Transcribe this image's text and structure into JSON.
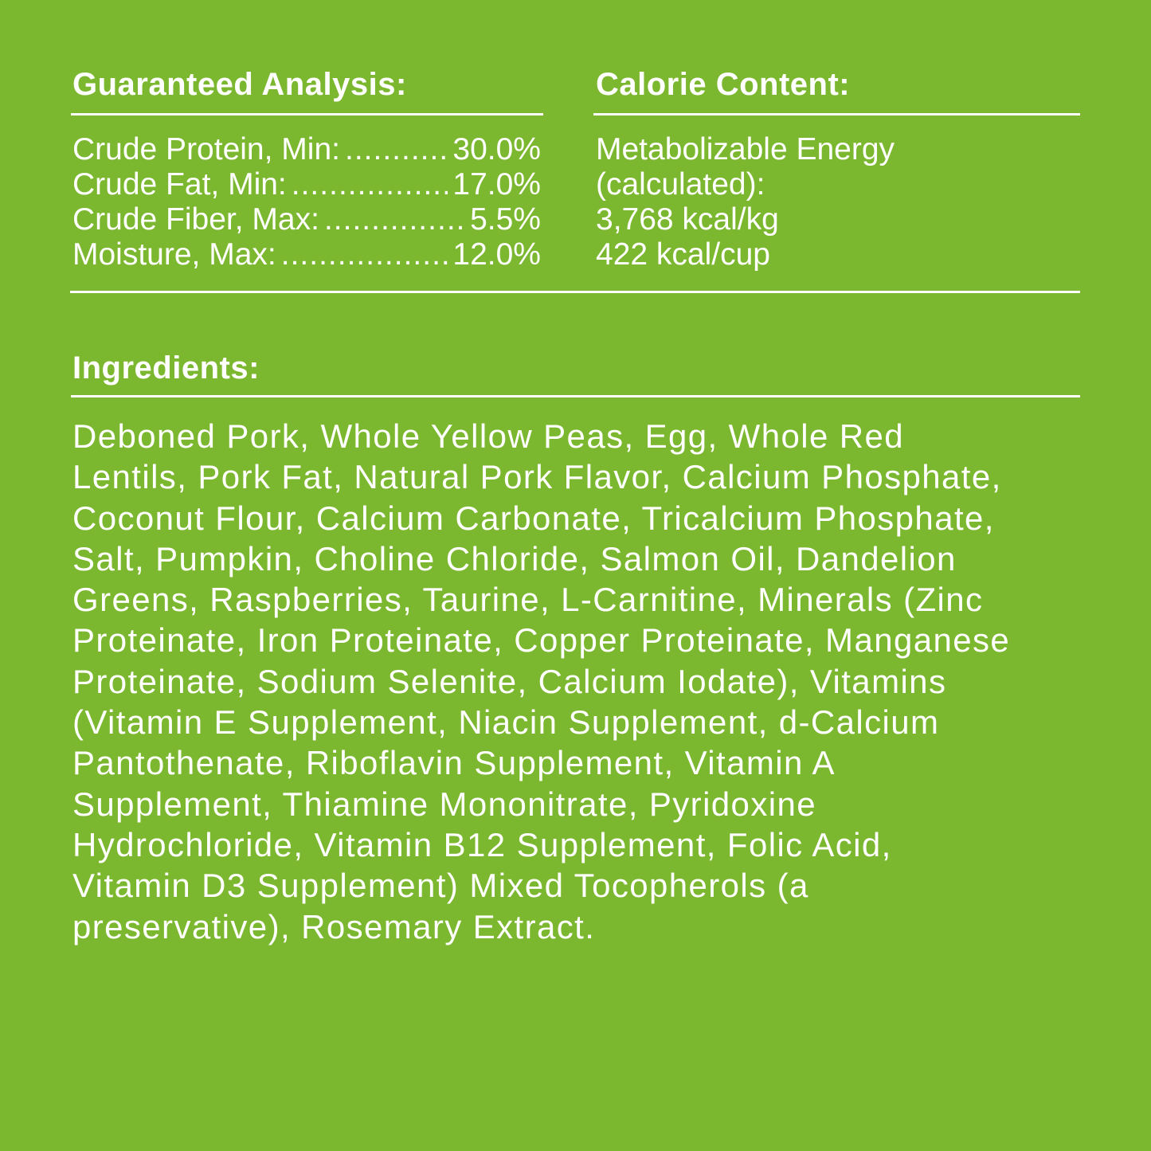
{
  "analysis": {
    "title": "Guaranteed Analysis:",
    "rows": [
      {
        "label": "Crude Protein, Min:",
        "value": "30.0%"
      },
      {
        "label": "Crude Fat, Min:",
        "value": "17.0%"
      },
      {
        "label": "Crude Fiber, Max:",
        "value": "5.5%"
      },
      {
        "label": "Moisture, Max:",
        "value": "12.0%"
      }
    ]
  },
  "calorie": {
    "title": "Calorie Content:",
    "lines": [
      "Metabolizable Energy",
      "(calculated):",
      "3,768 kcal/kg",
      "422 kcal/cup"
    ]
  },
  "ingredients": {
    "title": "Ingredients:",
    "lines": [
      "Deboned Pork, Whole Yellow Peas, Egg, Whole Red",
      "Lentils, Pork Fat, Natural Pork Flavor, Calcium Phosphate,",
      "Coconut Flour, Calcium Carbonate, Tricalcium Phosphate,",
      "Salt, Pumpkin, Choline Chloride, Salmon Oil, Dandelion",
      "Greens, Raspberries, Taurine, L-Carnitine, Minerals (Zinc",
      "Proteinate, Iron Proteinate, Copper Proteinate, Manganese",
      "Proteinate, Sodium Selenite, Calcium Iodate), Vitamins",
      "(Vitamin E Supplement, Niacin Supplement, d-Calcium",
      "Pantothenate, Riboflavin Supplement, Vitamin A",
      "Supplement, Thiamine Mononitrate, Pyridoxine",
      "Hydrochloride, Vitamin B12 Supplement, Folic Acid,",
      "Vitamin D3 Supplement) Mixed Tocopherols (a",
      "preservative), Rosemary Extract."
    ]
  },
  "colors": {
    "background": "#7cb82f",
    "text": "#ffffff"
  }
}
